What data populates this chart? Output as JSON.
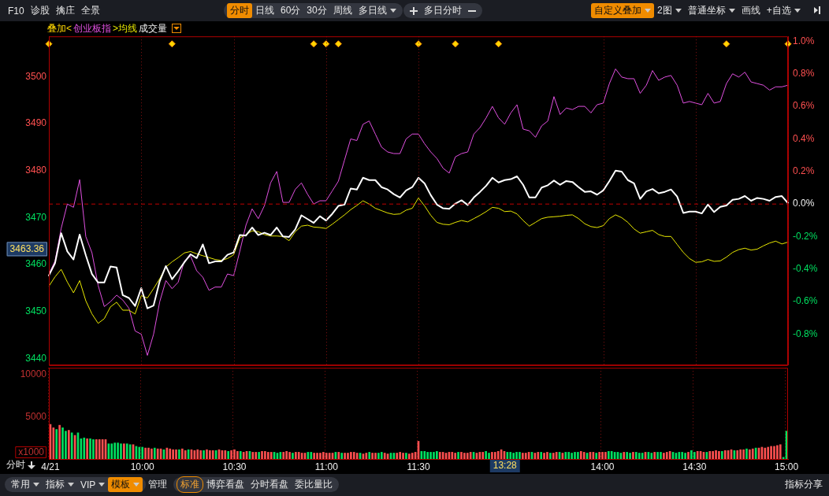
{
  "chart_data": [
    {
      "type": "line",
      "legend": "top left",
      "legend_title": "叠加<",
      "grid": "x",
      "marker": "none",
      "tick_labels": "y",
      "categories": [
        null,
        null,
        null,
        null,
        null,
        null,
        null,
        null,
        null,
        null,
        null,
        null,
        null,
        null,
        null,
        null,
        null,
        null,
        null,
        null,
        null,
        null,
        null,
        null,
        null,
        null,
        null,
        null,
        null,
        null,
        null,
        null,
        null,
        null,
        null,
        null,
        null,
        null,
        null,
        null,
        null,
        null,
        null,
        null,
        null,
        null,
        null,
        null,
        null,
        null,
        null,
        null,
        null,
        null,
        null,
        null,
        null,
        null,
        null,
        null,
        null,
        null,
        null,
        null,
        null,
        null,
        null,
        null,
        null,
        null,
        null,
        null,
        null,
        null,
        null,
        null,
        null,
        null,
        null,
        null,
        null,
        null,
        null,
        null,
        null,
        null,
        null,
        null,
        null,
        null,
        null,
        null,
        null,
        null,
        null,
        null,
        null,
        null,
        null,
        null,
        null,
        null,
        null,
        null,
        null,
        null,
        null,
        null,
        null,
        null,
        null,
        null,
        null,
        null,
        null,
        null,
        null,
        null,
        null,
        null,
        null
      ],
      "ylim": [
        3438.6,
        3508.6
      ],
      "yticks": [
        3440,
        3450,
        3460,
        3470,
        3480,
        3490,
        3500
      ],
      "y2lim": [
        -0.99,
        1.03
      ],
      "y2ticks": [
        {
          "value": -0.8,
          "label": "-0.8%"
        },
        {
          "value": -0.6,
          "label": "-0.6%"
        },
        {
          "value": -0.4,
          "label": "-0.4%"
        },
        {
          "value": -0.2,
          "label": "-0.2%"
        },
        {
          "value": 0,
          "label": "0.0%"
        },
        {
          "value": 0.2,
          "label": "0.2%"
        },
        {
          "value": 0.4,
          "label": "0.4%"
        },
        {
          "value": 0.6,
          "label": "0.6%"
        },
        {
          "value": 0.8,
          "label": "0.8%"
        },
        {
          "value": 1.0,
          "label": "1.0%"
        }
      ],
      "ref_lines": [
        {
          "axis": "y",
          "value": 3472.9,
          "color": "#c00000",
          "line_style": "dashed"
        }
      ],
      "annotations": [
        "3463.36",
        "F10",
        "诊股",
        "擒庄",
        "全景",
        "分时",
        "日线",
        "60分",
        "30分",
        "周线",
        "多日线",
        "多日分时",
        "自定义叠加",
        "2图",
        "普通坐标",
        "画线",
        "+自选"
      ],
      "series": [
        {
          "name": "创业板指",
          "color": "#e050e0",
          "axis": "y2",
          "values": [
            -0.43,
            -0.35,
            -0.15,
            0,
            -0.02,
            0.15,
            -0.2,
            -0.3,
            -0.5,
            -0.63,
            -0.6,
            -0.56,
            -0.59,
            -0.64,
            -0.78,
            -0.8,
            -0.93,
            -0.8,
            -0.6,
            -0.47,
            -0.52,
            -0.48,
            -0.35,
            -0.32,
            -0.41,
            -0.45,
            -0.53,
            -0.51,
            -0.51,
            -0.43,
            -0.44,
            -0.29,
            -0.13,
            -0.03,
            -0.09,
            -0.01,
            0.13,
            0.2,
            0.01,
            0.01,
            0.09,
            0.13,
            0.06,
            0,
            0.02,
            0.02,
            0.08,
            0.14,
            0.27,
            0.4,
            0.39,
            0.49,
            0.51,
            0.43,
            0.35,
            0.32,
            0.31,
            0.31,
            0.4,
            0.43,
            0.43,
            0.37,
            0.32,
            0.28,
            0.22,
            0.19,
            0.29,
            0.31,
            0.32,
            0.43,
            0.47,
            0.53,
            0.6,
            0.53,
            0.49,
            0.56,
            0.61,
            0.46,
            0.45,
            0.41,
            0.48,
            0.51,
            0.66,
            0.55,
            0.59,
            0.58,
            0.6,
            0.6,
            0.56,
            0.61,
            0.62,
            0.74,
            0.83,
            0.78,
            0.77,
            0.77,
            0.68,
            0.73,
            0.82,
            0.76,
            0.78,
            0.79,
            0.73,
            0.62,
            0.63,
            0.62,
            0.61,
            0.68,
            0.62,
            0.63,
            0.74,
            0.8,
            0.78,
            0.81,
            0.75,
            0.74,
            0.73,
            0.7,
            0.72,
            0.72,
            0.73
          ]
        },
        {
          "name": ">均线",
          "color": "#e8e800",
          "values": [
            3455.4,
            3457.4,
            3459,
            3456.3,
            3454,
            3456.6,
            3452.3,
            3449.5,
            3447.5,
            3448.5,
            3451,
            3452,
            3450.3,
            3450.3,
            3449.5,
            3453.4,
            3452.9,
            3454.9,
            3457,
            3459.5,
            3460.6,
            3461.5,
            3462.5,
            3462.8,
            3462.3,
            3461.9,
            3461.5,
            3461.1,
            3460.9,
            3461.3,
            3462.1,
            3465.7,
            3466.4,
            3467.2,
            3467,
            3466.4,
            3466.1,
            3466.1,
            3466,
            3465.1,
            3467,
            3468.2,
            3468.4,
            3468,
            3467.9,
            3467.7,
            3468.6,
            3469.6,
            3470.6,
            3471.7,
            3472.6,
            3473.6,
            3472.9,
            3472,
            3471.5,
            3471,
            3470.7,
            3470.8,
            3471.6,
            3472,
            3474.2,
            3472.5,
            3470.5,
            3469,
            3468.6,
            3468.5,
            3469,
            3469.4,
            3469.1,
            3469.8,
            3470.5,
            3471.3,
            3472.2,
            3472,
            3471.3,
            3471.4,
            3470.8,
            3469.4,
            3468.2,
            3469,
            3469.8,
            3470.1,
            3470.2,
            3470.3,
            3470.5,
            3470.6,
            3469.8,
            3468.7,
            3468.1,
            3467.9,
            3468.3,
            3469.8,
            3470.6,
            3470,
            3469,
            3467.6,
            3466.7,
            3467,
            3467.3,
            3466.4,
            3466,
            3466,
            3464.3,
            3462.6,
            3461.3,
            3460.5,
            3460.6,
            3461.1,
            3460.7,
            3460.8,
            3461.6,
            3462.6,
            3463.2,
            3463.5,
            3463.1,
            3463.3,
            3464,
            3464.6,
            3465,
            3464.4,
            3464.8
          ]
        },
        {
          "color": "#ffffff",
          "values": [
            3457.7,
            3460.3,
            3466.7,
            3462.8,
            3461.1,
            3466.4,
            3462,
            3458,
            3456.2,
            3456.2,
            3459.6,
            3459.4,
            3453.5,
            3452.9,
            3451.2,
            3455,
            3450.7,
            3451.3,
            3456.5,
            3459.7,
            3456.9,
            3458.6,
            3460.5,
            3462.2,
            3461.4,
            3464.3,
            3460.3,
            3460.7,
            3460.7,
            3462.1,
            3462.6,
            3466.3,
            3466.2,
            3467.9,
            3466.3,
            3466.8,
            3466.3,
            3467.9,
            3466,
            3465.9,
            3467.5,
            3470.5,
            3469.7,
            3468.9,
            3470.3,
            3469.4,
            3470.8,
            3472.5,
            3472.8,
            3476.2,
            3476,
            3478.5,
            3478,
            3478,
            3476.5,
            3476,
            3475,
            3474.3,
            3475.8,
            3476.5,
            3478.5,
            3477.3,
            3474.8,
            3472.8,
            3472,
            3471.9,
            3473,
            3473.7,
            3472.7,
            3474.3,
            3475.5,
            3476.8,
            3478.5,
            3477.5,
            3478,
            3478.2,
            3478.8,
            3477,
            3474.3,
            3474.3,
            3476.4,
            3476.9,
            3477.9,
            3477,
            3477.8,
            3477.6,
            3476.5,
            3475.5,
            3475.6,
            3474.9,
            3475.8,
            3477.8,
            3480,
            3479.8,
            3478,
            3477.3,
            3474,
            3475.6,
            3476.1,
            3475.2,
            3475.5,
            3476,
            3474.5,
            3471,
            3471.3,
            3471.3,
            3470.9,
            3472.8,
            3471.2,
            3472.3,
            3472.6,
            3473.8,
            3474,
            3474.6,
            3473.6,
            3474.2,
            3474,
            3473.6,
            3474.4,
            3474.6,
            3473.1
          ]
        },
        {
          "type": "scatter",
          "marker": "diamond",
          "color": "#ffd700",
          "values": [
            3507,
            null,
            null,
            null,
            null,
            null,
            null,
            null,
            null,
            null,
            null,
            null,
            null,
            null,
            null,
            null,
            null,
            null,
            null,
            null,
            3507,
            null,
            null,
            null,
            null,
            null,
            null,
            null,
            null,
            null,
            null,
            null,
            null,
            null,
            null,
            null,
            null,
            null,
            null,
            null,
            null,
            null,
            null,
            3507,
            null,
            3507,
            null,
            3507,
            null,
            null,
            null,
            null,
            null,
            null,
            null,
            null,
            null,
            null,
            null,
            null,
            3507,
            null,
            null,
            null,
            null,
            null,
            3507,
            null,
            null,
            null,
            null,
            null,
            null,
            3507,
            null,
            null,
            null,
            null,
            null,
            null,
            null,
            null,
            null,
            null,
            null,
            null,
            null,
            null,
            null,
            null,
            null,
            null,
            null,
            null,
            null,
            null,
            null,
            null,
            null,
            null,
            null,
            null,
            null,
            null,
            null,
            null,
            null,
            null,
            null,
            null,
            3507,
            null,
            null,
            null,
            null,
            null,
            null,
            null,
            null,
            null,
            3507
          ]
        }
      ]
    },
    {
      "type": "bar",
      "legend": "top left",
      "grid": "x",
      "xlabel": "分时",
      "ylabel": "x1000",
      "categories": [
        "4/21",
        null,
        null,
        null,
        null,
        null,
        null,
        null,
        null,
        null,
        null,
        null,
        null,
        null,
        null,
        null,
        null,
        null,
        null,
        null,
        null,
        null,
        null,
        null,
        null,
        null,
        null,
        null,
        null,
        null,
        "10:00",
        null,
        null,
        null,
        null,
        null,
        null,
        null,
        null,
        null,
        null,
        null,
        null,
        null,
        null,
        null,
        null,
        null,
        null,
        null,
        null,
        null,
        null,
        null,
        null,
        null,
        null,
        null,
        null,
        null,
        "10:30",
        null,
        null,
        null,
        null,
        null,
        null,
        null,
        null,
        null,
        null,
        null,
        null,
        null,
        null,
        null,
        null,
        null,
        null,
        null,
        null,
        null,
        null,
        null,
        null,
        null,
        null,
        null,
        null,
        null,
        "11:00",
        null,
        null,
        null,
        null,
        null,
        null,
        null,
        null,
        null,
        null,
        null,
        null,
        null,
        null,
        null,
        null,
        null,
        null,
        null,
        null,
        null,
        null,
        null,
        null,
        null,
        null,
        null,
        null,
        null,
        "11:30",
        null,
        null,
        null,
        null,
        null,
        null,
        null,
        null,
        null,
        null,
        null,
        null,
        null,
        null,
        null,
        null,
        null,
        null,
        null,
        null,
        null,
        null,
        null,
        null,
        null,
        null,
        null,
        null,
        null,
        null,
        null,
        null,
        null,
        null,
        null,
        null,
        null,
        null,
        null,
        null,
        null,
        null,
        null,
        null,
        null,
        null,
        null,
        null,
        null,
        null,
        null,
        null,
        null,
        null,
        null,
        null,
        null,
        null,
        null,
        "14:00",
        null,
        null,
        null,
        null,
        null,
        null,
        null,
        null,
        null,
        null,
        null,
        null,
        null,
        null,
        null,
        null,
        null,
        null,
        null,
        null,
        null,
        null,
        null,
        null,
        null,
        null,
        null,
        null,
        null,
        "14:30",
        null,
        null,
        null,
        null,
        null,
        null,
        null,
        null,
        null,
        null,
        null,
        null,
        null,
        null,
        null,
        null,
        null,
        null,
        null,
        null,
        null,
        null,
        null,
        null,
        null,
        null,
        null,
        null,
        null,
        "15:00"
      ],
      "ylim": [
        0,
        10800
      ],
      "yticks": [
        5000,
        10000
      ],
      "annotations": [
        "13:28",
        "常用",
        "指标",
        "VIP",
        "模板",
        "管理",
        "标准",
        "博弈看盘",
        "分时看盘",
        "委比量比",
        "指标分享"
      ],
      "series": [
        {
          "name": "成交量",
          "values": [
            4100,
            3700,
            3500,
            4000,
            3700,
            3300,
            3400,
            3100,
            2800,
            3100,
            2400,
            2500,
            2400,
            2400,
            2300,
            2300,
            2300,
            2300,
            2300,
            1800,
            1800,
            1900,
            1900,
            1800,
            1800,
            1800,
            1700,
            1700,
            1500,
            1400,
            1400,
            1300,
            1300,
            1200,
            1300,
            1200,
            1200,
            1100,
            1300,
            1200,
            1100,
            1100,
            1100,
            1200,
            1000,
            1100,
            1100,
            1000,
            1100,
            1000,
            1000,
            1100,
            1000,
            1000,
            1000,
            1100,
            1000,
            1000,
            900,
            1000,
            1100,
            900,
            900,
            800,
            900,
            900,
            800,
            800,
            800,
            900,
            900,
            800,
            800,
            800,
            700,
            800,
            800,
            900,
            800,
            700,
            800,
            800,
            700,
            700,
            800,
            800,
            700,
            700,
            700,
            800,
            700,
            700,
            700,
            800,
            800,
            700,
            700,
            700,
            800,
            800,
            700,
            700,
            600,
            700,
            800,
            700,
            700,
            700,
            800,
            700,
            600,
            700,
            700,
            700,
            800,
            700,
            700,
            600,
            700,
            800,
            2100,
            900,
            900,
            800,
            800,
            800,
            900,
            800,
            800,
            700,
            800,
            800,
            700,
            800,
            800,
            700,
            700,
            800,
            800,
            700,
            800,
            800,
            900,
            700,
            800,
            800,
            900,
            1100,
            900,
            800,
            800,
            700,
            800,
            800,
            700,
            700,
            800,
            800,
            700,
            800,
            800,
            700,
            800,
            700,
            700,
            800,
            800,
            700,
            800,
            800,
            700,
            800,
            800,
            900,
            800,
            700,
            800,
            800,
            700,
            800,
            800,
            800,
            900,
            900,
            800,
            800,
            700,
            800,
            800,
            700,
            800,
            800,
            700,
            700,
            800,
            800,
            700,
            800,
            800,
            800,
            700,
            800,
            900,
            800,
            700,
            800,
            800,
            700,
            800,
            1000,
            800,
            900,
            900,
            800,
            800,
            900,
            900,
            1000,
            900,
            900,
            1000,
            1000,
            1100,
            1000,
            1000,
            1100,
            1100,
            1200,
            1100,
            1200,
            1300,
            1300,
            1400,
            1300,
            1400,
            1500,
            1500,
            1600,
            1700,
            200,
            3300
          ],
          "colors": [
            "#ff5050",
            "#ff5050",
            "#00e060",
            "#ff5050",
            "#00e060",
            "#00e060",
            "#ff5050",
            "#00e060",
            "#ff5050",
            "#00e060",
            "#00e060",
            "#00e060",
            "#ff5050",
            "#00e060",
            "#00e060",
            "#ff5050",
            "#ff5050",
            "#ff5050",
            "#ff5050",
            "#00e060",
            "#00e060",
            "#00e060",
            "#00e060",
            "#00e060",
            "#ff5050",
            "#00e060",
            "#00e060",
            "#ff5050",
            "#00e060",
            "#00e060",
            "#00e060",
            "#ff5050",
            "#ff5050",
            "#ff5050",
            "#00e060",
            "#ff5050",
            "#ff5050",
            "#00e060",
            "#ff5050",
            "#ff5050",
            "#ff5050",
            "#ff5050",
            "#00e060",
            "#ff5050",
            "#ff5050",
            "#00e060",
            "#ff5050",
            "#ff5050",
            "#ff5050",
            "#ff5050",
            "#00e060",
            "#ff5050",
            "#ff5050",
            "#ff5050",
            "#00e060",
            "#ff5050",
            "#ff5050",
            "#ff5050",
            "#00e060",
            "#ff5050",
            "#ff5050",
            "#ff5050",
            "#00e060",
            "#ff5050",
            "#ff5050",
            "#00e060",
            "#ff5050",
            "#ff5050",
            "#00e060",
            "#ff5050",
            "#ff5050",
            "#ff5050",
            "#ff5050",
            "#00e060",
            "#00e060",
            "#00e060",
            "#ff5050",
            "#ff5050",
            "#ff5050",
            "#00e060",
            "#ff5050",
            "#ff5050",
            "#ff5050",
            "#ff5050",
            "#00e060",
            "#00e060",
            "#ff5050",
            "#ff5050",
            "#ff5050",
            "#ff5050",
            "#ff5050",
            "#ff5050",
            "#ff5050",
            "#00e060",
            "#ff5050",
            "#00e060",
            "#ff5050",
            "#ff5050",
            "#ff5050",
            "#ff5050",
            "#ff5050",
            "#00e060",
            "#ff5050",
            "#ff5050",
            "#00e060",
            "#ff5050",
            "#ff5050",
            "#00e060",
            "#00e060",
            "#ff5050",
            "#ff5050",
            "#00e060",
            "#00e060",
            "#ff5050",
            "#ff5050",
            "#ff5050",
            "#00e060",
            "#ff5050",
            "#ff5050",
            "#ff5050",
            "#ff5050",
            "#00e060",
            "#00e060",
            "#00e060",
            "#00e060",
            "#00e060",
            "#00e060",
            "#ff5050",
            "#ff5050",
            "#ff5050",
            "#ff5050",
            "#ff5050",
            "#ff5050",
            "#00e060",
            "#ff5050",
            "#ff5050",
            "#ff5050",
            "#ff5050",
            "#00e060",
            "#ff5050",
            "#ff5050",
            "#ff5050",
            "#00e060",
            "#00e060",
            "#ff5050",
            "#ff5050",
            "#ff5050",
            "#ff5050",
            "#ff5050",
            "#00e060",
            "#00e060",
            "#00e060",
            "#00e060",
            "#00e060",
            "#ff5050",
            "#ff5050",
            "#ff5050",
            "#00e060",
            "#ff5050",
            "#ff5050",
            "#00e060",
            "#ff5050",
            "#ff5050",
            "#00e060",
            "#ff5050",
            "#ff5050",
            "#00e060",
            "#ff5050",
            "#00e060",
            "#00e060",
            "#00e060",
            "#00e060",
            "#00e060",
            "#ff5050",
            "#ff5050",
            "#00e060",
            "#ff5050",
            "#ff5050",
            "#00e060",
            "#ff5050",
            "#ff5050",
            "#ff5050",
            "#00e060",
            "#00e060",
            "#00e060",
            "#00e060",
            "#00e060",
            "#ff5050",
            "#00e060",
            "#00e060",
            "#ff5050",
            "#00e060",
            "#00e060",
            "#00e060",
            "#ff5050",
            "#00e060",
            "#00e060",
            "#ff5050",
            "#00e060",
            "#00e060",
            "#ff5050",
            "#ff5050",
            "#ff5050",
            "#00e060",
            "#00e060",
            "#00e060",
            "#00e060",
            "#00e060",
            "#ff5050",
            "#00e060",
            "#00e060",
            "#ff5050",
            "#ff5050",
            "#ff5050",
            "#00e060",
            "#ff5050",
            "#ff5050",
            "#ff5050",
            "#ff5050",
            "#00e060",
            "#ff5050",
            "#ff5050",
            "#ff5050",
            "#00e060",
            "#ff5050",
            "#ff5050",
            "#ff5050",
            "#00e060",
            "#ff5050",
            "#ff5050",
            "#00e060",
            "#ff5050",
            "#ff5050",
            "#ff5050",
            "#ff5050",
            "#ff5050",
            "#ff5050",
            "#ff5050",
            "#ff5050",
            "#00e060",
            "#00e060"
          ]
        }
      ]
    }
  ]
}
